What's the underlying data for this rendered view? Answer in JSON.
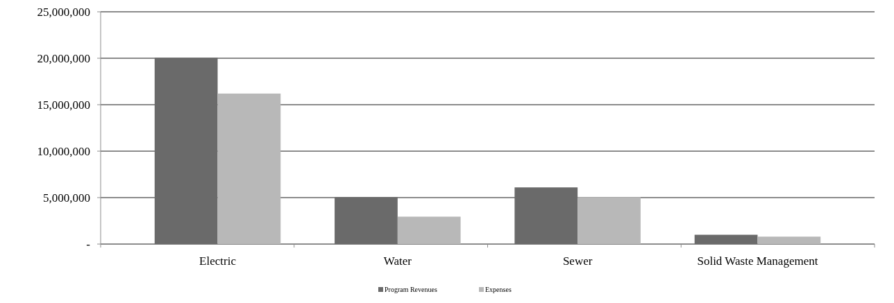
{
  "chart_data": {
    "type": "bar",
    "categories": [
      "Electric",
      "Water",
      "Sewer",
      "Solid Waste Management"
    ],
    "series": [
      {
        "name": "Program Revenues",
        "color": "#6a6a6a",
        "values": [
          20050000,
          5050000,
          6100000,
          1000000
        ]
      },
      {
        "name": "Expenses",
        "color": "#b8b8b8",
        "values": [
          16200000,
          2950000,
          5050000,
          800000
        ]
      }
    ],
    "ylim": [
      0,
      25000000
    ],
    "yticks": [
      {
        "value": 0,
        "label": "-"
      },
      {
        "value": 5000000,
        "label": "5,000,000"
      },
      {
        "value": 10000000,
        "label": "10,000,000"
      },
      {
        "value": 15000000,
        "label": "15,000,000"
      },
      {
        "value": 20000000,
        "label": "20,000,000"
      },
      {
        "value": 25000000,
        "label": "25,000,000"
      }
    ],
    "grid": "y",
    "legend": "bottom"
  }
}
